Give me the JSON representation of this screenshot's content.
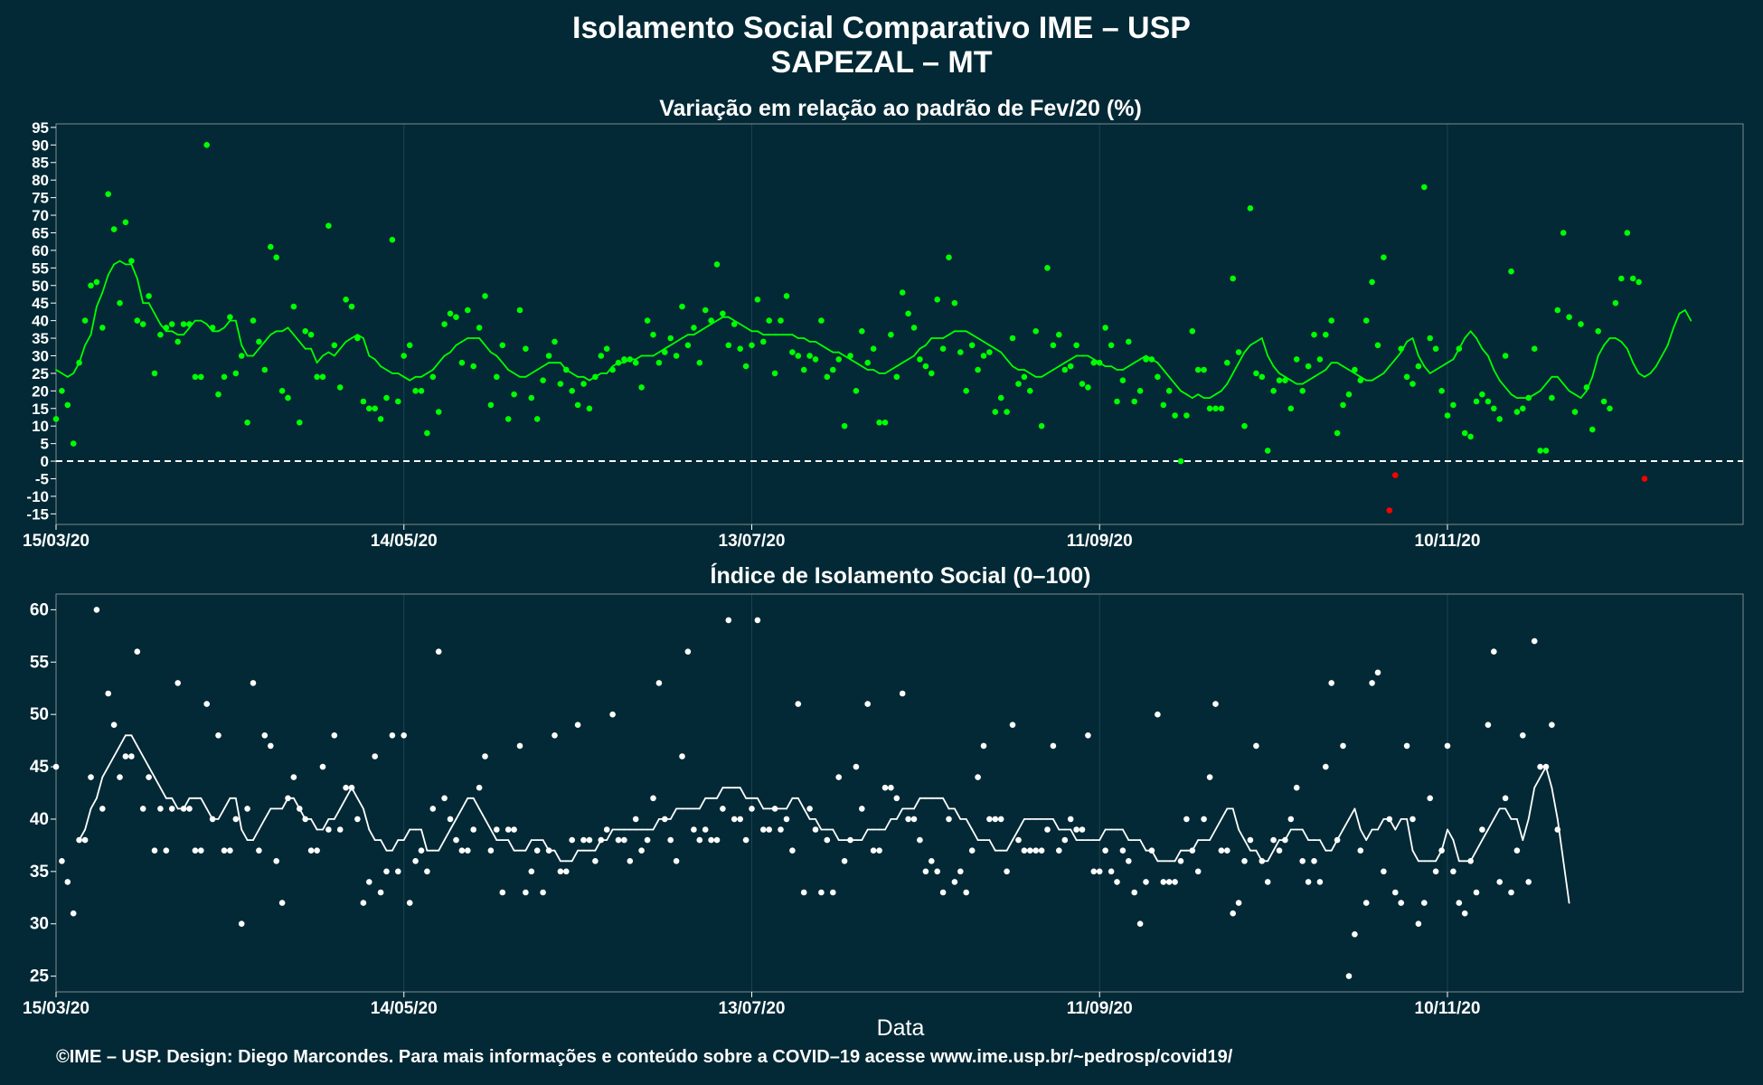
{
  "title": "Isolamento Social Comparativo IME – USP",
  "subtitle": "SAPEZAL – MT",
  "footer": "©IME – USP. Design: Diego Marcondes. Para mais informações e conteúdo sobre a COVID–19 acesse www.ime.usp.br/~pedrosp/covid19/",
  "colors": {
    "background": "#022935",
    "panel_border": "#7f8c93",
    "positive": "#00ff00",
    "negative": "#ff0000",
    "index": "#ffffff"
  },
  "chart_data": [
    {
      "type": "scatter",
      "title": "Variação em relação ao padrão de Fev/20 (%)",
      "xlabel": "",
      "ylabel": "",
      "xlim": [
        "2020-03-15",
        "2020-12-31"
      ],
      "ylim": [
        -18,
        96
      ],
      "yticks": [
        -15,
        -10,
        -5,
        0,
        5,
        10,
        15,
        20,
        25,
        30,
        35,
        40,
        45,
        50,
        55,
        60,
        65,
        70,
        75,
        80,
        85,
        90,
        95
      ],
      "xticks": [
        "15/03/20",
        "14/05/20",
        "13/07/20",
        "11/09/20",
        "10/11/20"
      ],
      "reference_line": 0,
      "grid": true,
      "points": {
        "start": "2020-03-15",
        "values": [
          12,
          20,
          16,
          5,
          28,
          40,
          50,
          51,
          38,
          76,
          66,
          45,
          68,
          57,
          40,
          39,
          47,
          25,
          36,
          38,
          39,
          34,
          39,
          39,
          24,
          24,
          90,
          38,
          19,
          24,
          41,
          25,
          30,
          11,
          40,
          34,
          26,
          61,
          58,
          20,
          18,
          44,
          11,
          37,
          36,
          24,
          24,
          67,
          33,
          21,
          46,
          44,
          35,
          17,
          15,
          15,
          12,
          18,
          63,
          17,
          30,
          33,
          20,
          20,
          8,
          24,
          14,
          39,
          42,
          41,
          28,
          43,
          27,
          38,
          47,
          16,
          24,
          33,
          12,
          19,
          43,
          32,
          18,
          12,
          23,
          30,
          34,
          22,
          26,
          20,
          16,
          22,
          15,
          24,
          30,
          32,
          26,
          28,
          29,
          29,
          28,
          21,
          40,
          36,
          28,
          31,
          35,
          30,
          44,
          33,
          38,
          28,
          43,
          40,
          56,
          42,
          33,
          39,
          32,
          27,
          33,
          46,
          34,
          40,
          25,
          40,
          47,
          31,
          30,
          26,
          30,
          29,
          40,
          24,
          26,
          29,
          10,
          30,
          20,
          37,
          28,
          32,
          11,
          11,
          36,
          24,
          48,
          42,
          38,
          29,
          27,
          25,
          46,
          32,
          58,
          45,
          31,
          20,
          33,
          26,
          30,
          31,
          14,
          18,
          14,
          35,
          22,
          24,
          20,
          37,
          10,
          55,
          33,
          36,
          26,
          27,
          33,
          22,
          21,
          28,
          28,
          38,
          33,
          17,
          23,
          34,
          17,
          20,
          29,
          29,
          24,
          16,
          20,
          13,
          0,
          13,
          37,
          26,
          26,
          15,
          15,
          15,
          28,
          52,
          31,
          10,
          72,
          25,
          24,
          3,
          20,
          23,
          23,
          15,
          29,
          20,
          27,
          36,
          29,
          36,
          40,
          8,
          16,
          19,
          26,
          23,
          40,
          51,
          33,
          58,
          -14,
          -4,
          32,
          24,
          22,
          27,
          78,
          35,
          32,
          20,
          13,
          16,
          32,
          8,
          7,
          17,
          19,
          17,
          15,
          12,
          30,
          54,
          14,
          15,
          18,
          32,
          3,
          3,
          18,
          43,
          65,
          41,
          14,
          39,
          21,
          9,
          37,
          17,
          15,
          45,
          52,
          65,
          52,
          51,
          -5
        ]
      },
      "series": [
        {
          "name": "",
          "values": [
            26,
            25,
            24,
            25,
            28,
            33,
            36,
            44,
            48,
            53,
            56,
            57,
            56,
            56,
            52,
            45,
            45,
            42,
            39,
            37,
            37,
            36,
            36,
            38,
            40,
            40,
            39,
            37,
            37,
            38,
            40,
            40,
            33,
            30,
            30,
            32,
            34,
            36,
            37,
            37,
            38,
            36,
            34,
            32,
            32,
            28,
            30,
            31,
            30,
            32,
            34,
            35,
            36,
            35,
            30,
            29,
            27,
            26,
            25,
            25,
            24,
            23,
            24,
            24,
            25,
            26,
            28,
            30,
            31,
            33,
            34,
            35,
            35,
            35,
            33,
            31,
            30,
            28,
            26,
            25,
            24,
            24,
            25,
            26,
            27,
            28,
            28,
            28,
            26,
            25,
            24,
            24,
            23,
            24,
            25,
            25,
            27,
            28,
            28,
            29,
            29,
            30,
            30,
            30,
            31,
            32,
            33,
            34,
            35,
            36,
            36,
            37,
            38,
            39,
            40,
            41,
            41,
            40,
            39,
            38,
            37,
            37,
            36,
            36,
            36,
            36,
            36,
            36,
            35,
            35,
            34,
            34,
            33,
            32,
            31,
            31,
            30,
            29,
            28,
            27,
            26,
            26,
            25,
            25,
            26,
            27,
            28,
            29,
            30,
            32,
            33,
            35,
            35,
            35,
            36,
            37,
            37,
            37,
            36,
            35,
            34,
            33,
            32,
            31,
            29,
            27,
            26,
            26,
            25,
            24,
            24,
            25,
            26,
            27,
            28,
            29,
            30,
            30,
            30,
            29,
            28,
            27,
            27,
            26,
            26,
            27,
            28,
            29,
            30,
            29,
            28,
            26,
            24,
            22,
            20,
            19,
            18,
            19,
            18,
            18,
            19,
            20,
            22,
            25,
            28,
            31,
            33,
            34,
            35,
            30,
            27,
            25,
            24,
            23,
            22,
            22,
            23,
            24,
            25,
            26,
            28,
            28,
            27,
            26,
            25,
            24,
            23,
            23,
            24,
            25,
            27,
            29,
            31,
            34,
            35,
            30,
            27,
            25,
            26,
            27,
            28,
            29,
            32,
            35,
            37,
            35,
            32,
            30,
            26,
            23,
            21,
            19,
            18,
            18,
            18,
            19,
            20,
            22,
            24,
            24,
            22,
            20,
            19,
            18,
            20,
            24,
            30,
            33,
            35,
            35,
            34,
            32,
            28,
            25,
            24,
            25,
            27,
            30,
            33,
            38,
            42,
            43,
            40
          ]
        }
      ]
    },
    {
      "type": "scatter",
      "title": "Índice de Isolamento Social (0–100)",
      "xlabel": "Data",
      "ylabel": "",
      "xlim": [
        "2020-03-15",
        "2020-12-31"
      ],
      "ylim": [
        23.5,
        61.5
      ],
      "yticks": [
        25,
        30,
        35,
        40,
        45,
        50,
        55,
        60
      ],
      "xticks": [
        "15/03/20",
        "14/05/20",
        "13/07/20",
        "11/09/20",
        "10/11/20"
      ],
      "grid": true,
      "points": {
        "start": "2020-03-15",
        "values": [
          45,
          36,
          34,
          31,
          38,
          38,
          44,
          60,
          41,
          52,
          49,
          44,
          46,
          46,
          56,
          41,
          44,
          37,
          41,
          37,
          41,
          53,
          41,
          41,
          37,
          37,
          51,
          40,
          48,
          37,
          37,
          40,
          30,
          41,
          53,
          37,
          48,
          47,
          36,
          32,
          42,
          44,
          41,
          40,
          37,
          37,
          45,
          39,
          48,
          39,
          43,
          43,
          40,
          32,
          34,
          46,
          33,
          35,
          48,
          35,
          48,
          32,
          36,
          37,
          35,
          41,
          56,
          42,
          40,
          38,
          37,
          37,
          39,
          43,
          46,
          37,
          39,
          33,
          39,
          39,
          47,
          33,
          35,
          37,
          33,
          37,
          48,
          35,
          35,
          38,
          49,
          38,
          38,
          36,
          38,
          39,
          50,
          38,
          38,
          36,
          40,
          37,
          38,
          42,
          53,
          40,
          38,
          36,
          46,
          56,
          39,
          38,
          39,
          38,
          38,
          41,
          59,
          40,
          40,
          38,
          41,
          59,
          39,
          39,
          41,
          39,
          40,
          37,
          51,
          33,
          41,
          39,
          33,
          38,
          33,
          44,
          36,
          38,
          45,
          41,
          51,
          37,
          37,
          43,
          43,
          42,
          52,
          40,
          40,
          38,
          35,
          36,
          35,
          33,
          40,
          34,
          35,
          33,
          37,
          44,
          47,
          40,
          40,
          40,
          35,
          49,
          38,
          37,
          37,
          37,
          37,
          39,
          47,
          37,
          38,
          40,
          39,
          39,
          48,
          35,
          35,
          37,
          35,
          34,
          37,
          36,
          33,
          30,
          34,
          37,
          50,
          34,
          34,
          34,
          36,
          40,
          37,
          35,
          40,
          44,
          51,
          37,
          37,
          31,
          32,
          36,
          38,
          47,
          36,
          34,
          38,
          37,
          38,
          40,
          43,
          36,
          34,
          36,
          34,
          45,
          53,
          38,
          47,
          25,
          29,
          37,
          32,
          53,
          54,
          35,
          40,
          33,
          32,
          47,
          40,
          30,
          32,
          42,
          35,
          37,
          47,
          35,
          32,
          31,
          36,
          33,
          39,
          49,
          56,
          34,
          42,
          33,
          37,
          48,
          34,
          57,
          45,
          45,
          49,
          39
        ]
      },
      "series": [
        {
          "name": "",
          "values": [
            null,
            null,
            null,
            null,
            38,
            39,
            41,
            42,
            44,
            45,
            46,
            47,
            48,
            48,
            47,
            46,
            45,
            44,
            43,
            42,
            42,
            41,
            41,
            42,
            42,
            42,
            41,
            40,
            40,
            41,
            42,
            42,
            39,
            38,
            38,
            39,
            40,
            41,
            41,
            41,
            42,
            42,
            41,
            40,
            40,
            39,
            39,
            40,
            40,
            41,
            42,
            43,
            42,
            41,
            39,
            38,
            38,
            37,
            37,
            38,
            38,
            39,
            39,
            39,
            37,
            37,
            37,
            38,
            39,
            40,
            41,
            42,
            42,
            41,
            40,
            39,
            38,
            38,
            38,
            37,
            37,
            37,
            38,
            38,
            38,
            37,
            37,
            36,
            36,
            36,
            37,
            37,
            37,
            37,
            38,
            38,
            39,
            39,
            39,
            39,
            39,
            39,
            39,
            39,
            40,
            40,
            40,
            41,
            41,
            41,
            41,
            41,
            42,
            42,
            42,
            43,
            43,
            43,
            43,
            42,
            42,
            42,
            41,
            41,
            41,
            41,
            41,
            42,
            42,
            41,
            40,
            40,
            39,
            39,
            39,
            38,
            38,
            38,
            38,
            38,
            39,
            39,
            39,
            39,
            40,
            40,
            41,
            41,
            41,
            42,
            42,
            42,
            42,
            42,
            41,
            41,
            40,
            40,
            39,
            38,
            38,
            38,
            37,
            37,
            37,
            38,
            39,
            40,
            40,
            40,
            40,
            40,
            40,
            39,
            39,
            39,
            38,
            38,
            38,
            38,
            38,
            39,
            39,
            39,
            39,
            38,
            38,
            38,
            37,
            37,
            36,
            36,
            36,
            36,
            37,
            37,
            37,
            38,
            38,
            38,
            39,
            40,
            41,
            41,
            39,
            38,
            37,
            37,
            36,
            36,
            37,
            38,
            38,
            39,
            39,
            39,
            38,
            38,
            38,
            37,
            37,
            38,
            39,
            40,
            41,
            39,
            38,
            39,
            39,
            40,
            40,
            39,
            40,
            40,
            37,
            36,
            36,
            36,
            36,
            37,
            39,
            38,
            36,
            36,
            36,
            37,
            38,
            39,
            40,
            41,
            41,
            40,
            40,
            38,
            40,
            43,
            44,
            45,
            43,
            40,
            36,
            32
          ]
        }
      ]
    }
  ]
}
